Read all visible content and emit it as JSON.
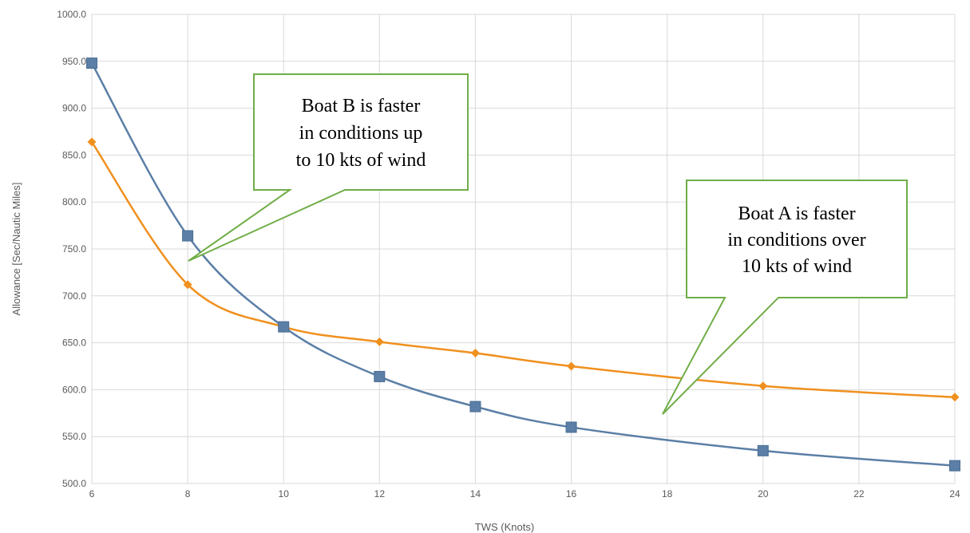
{
  "chart_data": {
    "type": "line",
    "xlabel": "TWS (Knots)",
    "ylabel": "Allowance [Sec/Nautic Miles]",
    "xlim": [
      6,
      24
    ],
    "ylim": [
      500,
      1000
    ],
    "x_ticks": [
      6,
      8,
      10,
      12,
      14,
      16,
      18,
      20,
      22,
      24
    ],
    "y_ticks": [
      500,
      550,
      600,
      650,
      700,
      750,
      800,
      850,
      900,
      950,
      1000
    ],
    "x_tick_labels": [
      "6",
      "8",
      "10",
      "12",
      "14",
      "16",
      "18",
      "20",
      "22",
      "24"
    ],
    "y_tick_labels": [
      "500.0",
      "550.0",
      "600.0",
      "650.0",
      "700.0",
      "750.0",
      "800.0",
      "850.0",
      "900.0",
      "950.0",
      "1000.0"
    ],
    "grid": true,
    "series": [
      {
        "x": [
          6,
          8,
          10,
          12,
          14,
          16,
          20,
          24
        ],
        "values": [
          948,
          764,
          667,
          614,
          582,
          560,
          535,
          519
        ],
        "color": "#5b7fa6",
        "marker": "square"
      },
      {
        "x": [
          6,
          8,
          10,
          12,
          14,
          16,
          20,
          24
        ],
        "values": [
          864,
          712,
          667,
          651,
          639,
          625,
          604,
          592
        ],
        "color": "#f0901e",
        "marker": "diamond"
      }
    ],
    "annotations": [
      {
        "lines": [
          "Boat B is faster",
          "in conditions up",
          "to 10 kts of wind"
        ],
        "border_color": "#70ad47"
      },
      {
        "lines": [
          "Boat A is faster",
          "in conditions over",
          "10 kts of wind"
        ],
        "border_color": "#70ad47"
      }
    ]
  }
}
